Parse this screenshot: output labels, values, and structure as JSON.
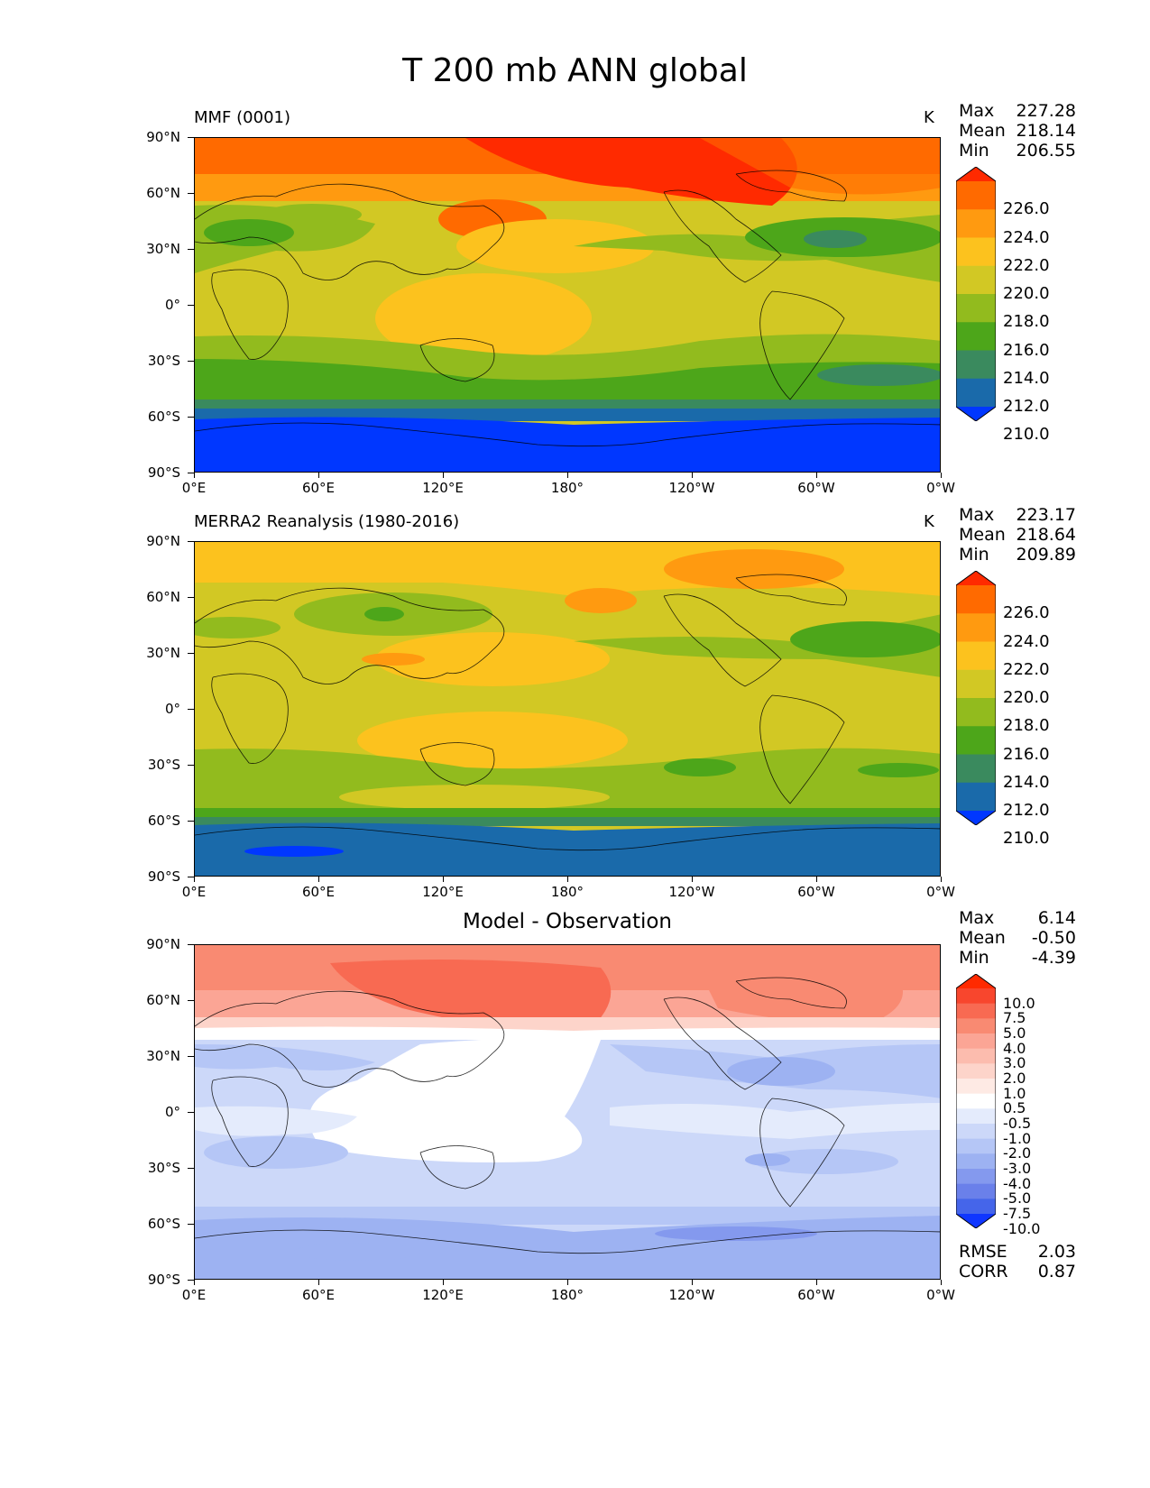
{
  "figure": {
    "title": "T 200 mb ANN global",
    "lat_ticks": [
      "90°N",
      "60°N",
      "30°N",
      "0°",
      "30°S",
      "60°S",
      "90°S"
    ],
    "lon_ticks": [
      "0°E",
      "60°E",
      "120°E",
      "180°",
      "120°W",
      "60°W",
      "0°W"
    ]
  },
  "panels": [
    {
      "label": "MMF (0001)",
      "units": "K",
      "stats": [
        {
          "label": "Max",
          "value": "227.28"
        },
        {
          "label": "Mean",
          "value": "218.14"
        },
        {
          "label": "Min",
          "value": "206.55"
        }
      ],
      "colorbar": {
        "labels": [
          "226.0",
          "224.0",
          "222.0",
          "220.0",
          "218.0",
          "216.0",
          "214.0",
          "212.0",
          "210.0"
        ],
        "colors": [
          "#ff2a00",
          "#ff6a00",
          "#ff9a10",
          "#fcc21e",
          "#d2c824",
          "#92bb1e",
          "#4da61a",
          "#3a8a5e",
          "#1a6aaa",
          "#0037ff"
        ]
      }
    },
    {
      "label": "MERRA2 Reanalysis (1980-2016)",
      "units": "K",
      "stats": [
        {
          "label": "Max",
          "value": "223.17"
        },
        {
          "label": "Mean",
          "value": "218.64"
        },
        {
          "label": "Min",
          "value": "209.89"
        }
      ],
      "colorbar": {
        "labels": [
          "226.0",
          "224.0",
          "222.0",
          "220.0",
          "218.0",
          "216.0",
          "214.0",
          "212.0",
          "210.0"
        ],
        "colors": [
          "#ff2a00",
          "#ff6a00",
          "#ff9a10",
          "#fcc21e",
          "#d2c824",
          "#92bb1e",
          "#4da61a",
          "#3a8a5e",
          "#1a6aaa",
          "#0037ff"
        ]
      }
    },
    {
      "title": "Model - Observation",
      "stats": [
        {
          "label": "Max",
          "value": "6.14"
        },
        {
          "label": "Mean",
          "value": "-0.50"
        },
        {
          "label": "Min",
          "value": "-4.39"
        }
      ],
      "colorbar": {
        "labels": [
          "10.0",
          "7.5",
          "5.0",
          "4.0",
          "3.0",
          "2.0",
          "1.0",
          "0.5",
          "-0.5",
          "-1.0",
          "-2.0",
          "-3.0",
          "-4.0",
          "-5.0",
          "-7.5",
          "-10.0"
        ],
        "colors": [
          "#ff2a00",
          "#f8462d",
          "#f86a52",
          "#f98a72",
          "#fba595",
          "#fcbcae",
          "#fdd4ca",
          "#feeae4",
          "#ffffff",
          "#e4ebfc",
          "#ccd8f9",
          "#b5c6f6",
          "#9db2f2",
          "#8499ee",
          "#6a80ea",
          "#4565ea",
          "#0f36ff"
        ]
      },
      "metrics": [
        {
          "label": "RMSE",
          "value": "2.03"
        },
        {
          "label": "CORR",
          "value": "0.87"
        }
      ]
    }
  ]
}
